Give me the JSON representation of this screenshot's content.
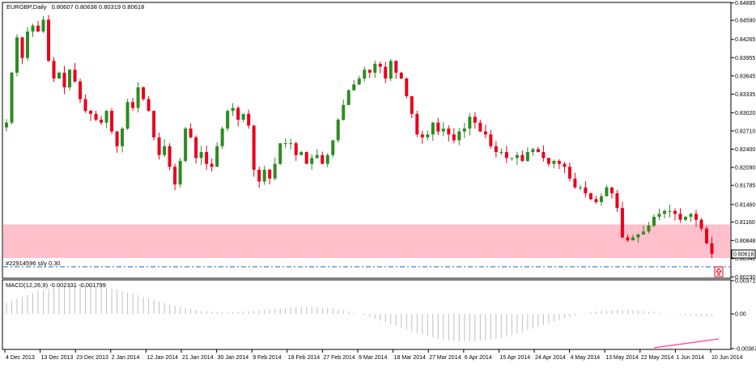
{
  "header": {
    "title": "EURGBP,Daily",
    "ohlc": "0.80607 0.80638 0.80319 0.80618",
    "macd_label": "MACD(12,26,9) -0.002331 -0.001799",
    "order_label": "#22914596 sl/y 0.30"
  },
  "colors": {
    "bull": "#2e8b22",
    "bear": "#e8001c",
    "zone": "#ffc0cb",
    "order_line": "#2060c0",
    "macd_bar": "#c0c0c0",
    "divergence": "#ff3ea0",
    "current_price_box": "#000000",
    "arrow": "#e8001c"
  },
  "icons": {
    "order_arrow": "up-arrow-icon"
  },
  "chart_data": [
    {
      "type": "candlestick",
      "symbol": "EURGBP",
      "timeframe": "Daily",
      "ylim": [
        0.8022,
        0.8488
      ],
      "price_ticks": [
        "0.84885",
        "0.84590",
        "0.84265",
        "0.83955",
        "0.83645",
        "0.83335",
        "0.83020",
        "0.82710",
        "0.82400",
        "0.82090",
        "0.81785",
        "0.81460",
        "0.81160",
        "0.80848",
        "0.80540",
        "0.80230"
      ],
      "current_price": "0.80618",
      "zone": {
        "top": 0.8112,
        "bottom": 0.8055
      },
      "order_line_price": 0.804,
      "x_labels": [
        "4 Dec 2013",
        "13 Dec 2013",
        "23 Dec 2013",
        "2 Jan 2014",
        "12 Jan 2014",
        "21 Jan 2014",
        "30 Jan 2014",
        "9 Feb 2014",
        "18 Feb 2014",
        "27 Feb 2014",
        "9 Mar 2014",
        "18 Mar 2014",
        "27 Mar 2014",
        "6 Apr 2014",
        "15 Apr 2014",
        "24 Apr 2014",
        "4 May 2014",
        "13 May 2014",
        "22 May 2014",
        "1 Jun 2014",
        "10 Jun 2014"
      ],
      "path": [
        0.8285,
        0.837,
        0.843,
        0.8395,
        0.844,
        0.845,
        0.844,
        0.846,
        0.839,
        0.836,
        0.837,
        0.8345,
        0.8375,
        0.8355,
        0.8325,
        0.8305,
        0.83,
        0.829,
        0.8285,
        0.8305,
        0.827,
        0.8245,
        0.8275,
        0.832,
        0.831,
        0.8345,
        0.8325,
        0.8305,
        0.826,
        0.823,
        0.8245,
        0.821,
        0.818,
        0.822,
        0.8275,
        0.826,
        0.8225,
        0.8235,
        0.8215,
        0.821,
        0.8245,
        0.8275,
        0.8305,
        0.831,
        0.829,
        0.83,
        0.828,
        0.8205,
        0.8185,
        0.8205,
        0.819,
        0.8215,
        0.825,
        0.825,
        0.825,
        0.823,
        0.8235,
        0.8215,
        0.8225,
        0.823,
        0.8215,
        0.823,
        0.8255,
        0.829,
        0.8315,
        0.834,
        0.835,
        0.836,
        0.8375,
        0.837,
        0.8385,
        0.838,
        0.836,
        0.839,
        0.837,
        0.836,
        0.833,
        0.83,
        0.8265,
        0.826,
        0.8265,
        0.8285,
        0.827,
        0.8275,
        0.8265,
        0.8255,
        0.827,
        0.8275,
        0.8295,
        0.8285,
        0.827,
        0.8265,
        0.8245,
        0.8235,
        0.8235,
        0.8225,
        0.8225,
        0.823,
        0.822,
        0.8235,
        0.824,
        0.8235,
        0.8225,
        0.8215,
        0.822,
        0.8215,
        0.821,
        0.819,
        0.8175,
        0.8175,
        0.8165,
        0.8155,
        0.815,
        0.816,
        0.8175,
        0.8165,
        0.814,
        0.809,
        0.8085,
        0.809,
        0.8095,
        0.81,
        0.811,
        0.8125,
        0.813,
        0.8135,
        0.8135,
        0.813,
        0.812,
        0.8125,
        0.813,
        0.812,
        0.8105,
        0.808,
        0.8062
      ]
    },
    {
      "type": "bar",
      "name": "MACD(12,26,9)",
      "ylim": [
        -0.00387,
        0.00371
      ],
      "ticks": [
        "0.003715",
        "0.00",
        "-0.00387"
      ],
      "signal_divergence_line": true
    }
  ]
}
